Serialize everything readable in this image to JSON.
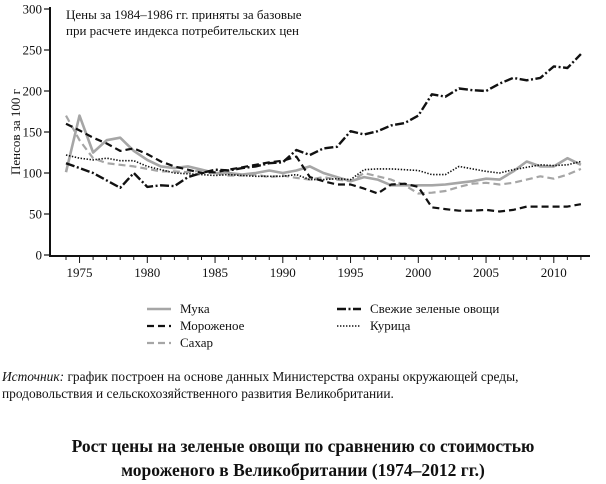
{
  "chart_data": {
    "type": "line",
    "title": "Рост цены на зеленые овощи по сравнению со стоимостью мороженого в Великобритании (1974–2012 гг.)",
    "note": [
      "Цены за 1984–1986 гг. приняты за базовые",
      "при расчете индекса потребительских цен"
    ],
    "xlabel": "",
    "ylabel": "Пенсов за 100 г",
    "ylim": [
      0,
      300
    ],
    "xlim": [
      1974,
      2012
    ],
    "yticks": [
      0,
      50,
      100,
      150,
      200,
      250,
      300
    ],
    "xticks": [
      1975,
      1980,
      1985,
      1990,
      1995,
      2000,
      2005,
      2010
    ],
    "grid": false,
    "legend_position": "below",
    "x": [
      1974,
      1975,
      1976,
      1977,
      1978,
      1979,
      1980,
      1981,
      1982,
      1983,
      1984,
      1985,
      1986,
      1987,
      1988,
      1989,
      1990,
      1991,
      1992,
      1993,
      1994,
      1995,
      1996,
      1997,
      1998,
      1999,
      2000,
      2001,
      2002,
      2003,
      2004,
      2005,
      2006,
      2007,
      2008,
      2009,
      2010,
      2011,
      2012
    ],
    "series": [
      {
        "name": "Мука",
        "style": "solid",
        "color": "#a6a6a6",
        "values": [
          101,
          170,
          125,
          140,
          143,
          127,
          116,
          108,
          106,
          108,
          104,
          100,
          100,
          98,
          100,
          103,
          100,
          103,
          108,
          100,
          95,
          90,
          95,
          92,
          85,
          85,
          85,
          85,
          86,
          88,
          90,
          93,
          92,
          102,
          114,
          108,
          108,
          118,
          110
        ]
      },
      {
        "name": "Мороженое",
        "style": "dashed",
        "color": "#111111",
        "values": [
          160,
          152,
          143,
          136,
          127,
          130,
          123,
          114,
          108,
          104,
          100,
          101,
          104,
          107,
          110,
          113,
          115,
          120,
          95,
          90,
          86,
          86,
          81,
          75,
          86,
          87,
          83,
          58,
          56,
          54,
          54,
          55,
          53,
          55,
          59,
          59,
          59,
          59,
          62
        ]
      },
      {
        "name": "Сахар",
        "style": "dashed",
        "color": "#a6a6a6",
        "values": [
          170,
          140,
          118,
          112,
          110,
          108,
          105,
          102,
          102,
          101,
          103,
          100,
          97,
          97,
          98,
          95,
          97,
          94,
          92,
          95,
          92,
          90,
          100,
          96,
          92,
          85,
          75,
          76,
          78,
          83,
          87,
          88,
          86,
          88,
          92,
          96,
          93,
          98,
          105
        ]
      },
      {
        "name": "Свежие зеленые овощи",
        "style": "dash-dot",
        "color": "#111111",
        "values": [
          112,
          106,
          100,
          91,
          82,
          100,
          83,
          85,
          84,
          95,
          100,
          104,
          103,
          106,
          108,
          112,
          113,
          128,
          122,
          130,
          132,
          151,
          147,
          151,
          158,
          161,
          170,
          196,
          193,
          203,
          201,
          200,
          209,
          216,
          213,
          216,
          230,
          228,
          245
        ]
      },
      {
        "name": "Курица",
        "style": "dotted",
        "color": "#111111",
        "values": [
          122,
          118,
          116,
          118,
          115,
          115,
          108,
          104,
          100,
          99,
          98,
          97,
          98,
          97,
          96,
          96,
          96,
          98,
          92,
          92,
          93,
          92,
          104,
          105,
          105,
          104,
          103,
          98,
          98,
          108,
          105,
          102,
          100,
          104,
          107,
          110,
          109,
          110,
          114
        ]
      }
    ],
    "source_lead": "Источник:",
    "source_text": " график построен на основе данных Министерства охраны окружающей среды, продовольствия и сельскохозяйственного развития Великобритании.",
    "caption_lines": [
      "Рост цены на зеленые овощи по сравнению со стоимостью",
      "мороженого в Великобритании (1974–2012 гг.)"
    ]
  }
}
